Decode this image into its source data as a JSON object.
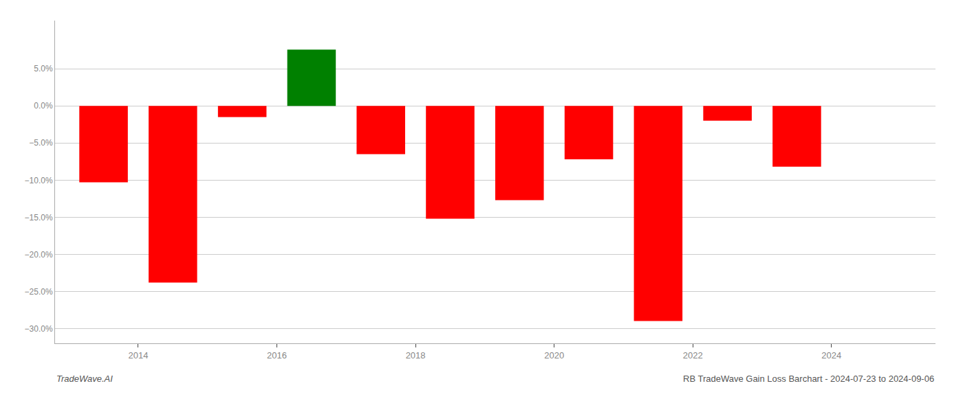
{
  "chart_data": {
    "type": "bar",
    "title": "RB TradeWave Gain Loss Barchart - 2024-07-23 to 2024-09-06",
    "annotations": [
      {
        "text": "TradeWave.AI"
      }
    ],
    "x": [
      2013.5,
      2014.5,
      2015.5,
      2016.5,
      2017.5,
      2018.5,
      2019.5,
      2020.5,
      2021.5,
      2022.5,
      2023.5
    ],
    "values": [
      -0.103,
      -0.238,
      -0.015,
      0.076,
      -0.065,
      -0.152,
      -0.127,
      -0.072,
      -0.29,
      -0.02,
      -0.082
    ],
    "colors": [
      "#ff0000",
      "#ff0000",
      "#ff0000",
      "#008000",
      "#ff0000",
      "#ff0000",
      "#ff0000",
      "#ff0000",
      "#ff0000",
      "#ff0000",
      "#ff0000"
    ],
    "xlim": [
      2012.8,
      2025.5
    ],
    "xticks": [
      2014,
      2016,
      2018,
      2020,
      2022,
      2024
    ],
    "ylim": [
      -0.32,
      0.115
    ],
    "yticks": [
      {
        "value": -0.3,
        "label": "−30.0%"
      },
      {
        "value": -0.25,
        "label": "−25.0%"
      },
      {
        "value": -0.2,
        "label": "−20.0%"
      },
      {
        "value": -0.15,
        "label": "−15.0%"
      },
      {
        "value": -0.1,
        "label": "−10.0%"
      },
      {
        "value": -0.05,
        "label": "−5.0%"
      },
      {
        "value": 0.0,
        "label": "0.0%"
      },
      {
        "value": 0.05,
        "label": "5.0%"
      }
    ],
    "grid": true
  }
}
